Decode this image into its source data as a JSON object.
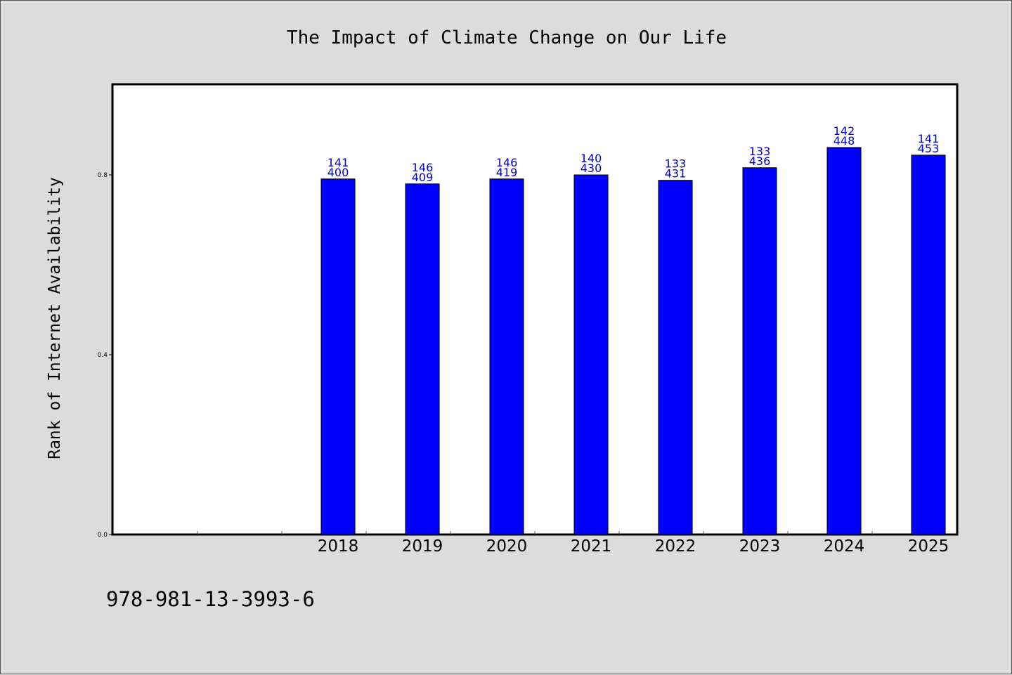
{
  "chart_data": {
    "type": "bar",
    "title": "The Impact of Climate Change on Our Life",
    "xlabel": "",
    "ylabel": "Rank of Internet Availability",
    "categories": [
      "",
      "",
      "2018",
      "2019",
      "2020",
      "2021",
      "2022",
      "2023",
      "2024",
      "2025"
    ],
    "values": [
      null,
      null,
      0.791,
      0.78,
      0.791,
      0.8,
      0.788,
      0.816,
      0.861,
      0.844
    ],
    "data_labels": [
      [
        "",
        ""
      ],
      [
        "",
        ""
      ],
      [
        "141",
        "400"
      ],
      [
        "146",
        "409"
      ],
      [
        "146",
        "419"
      ],
      [
        "140",
        "430"
      ],
      [
        "133",
        "431"
      ],
      [
        "133",
        "436"
      ],
      [
        "142",
        "448"
      ],
      [
        "141",
        "453"
      ]
    ],
    "ylim": [
      0,
      1.0
    ],
    "yticks": [
      "0.0",
      "0.4",
      "0.8"
    ],
    "ytick_values": [
      0.0,
      0.4,
      0.8
    ],
    "grid": false,
    "bar_color": "#0000ff",
    "label_color": "#0000cc"
  },
  "footer": {
    "code": "978-981-13-3993-6"
  }
}
